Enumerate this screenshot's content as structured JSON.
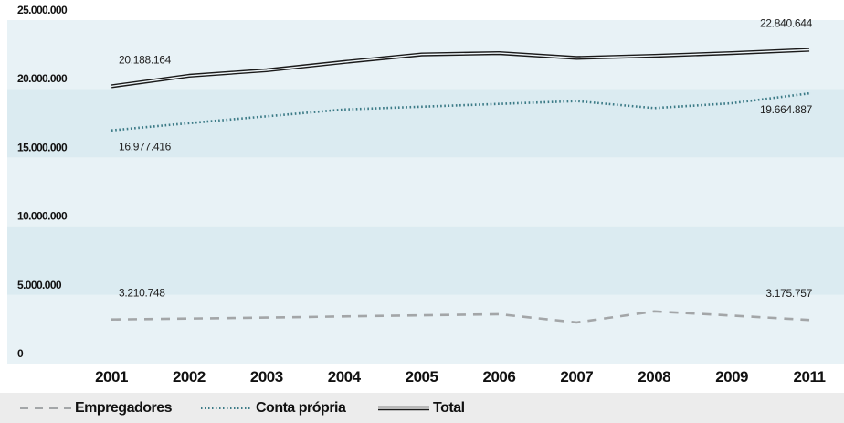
{
  "chart_data": {
    "type": "line",
    "categories": [
      "2001",
      "2002",
      "2003",
      "2004",
      "2005",
      "2006",
      "2007",
      "2008",
      "2009",
      "2011"
    ],
    "ylim": [
      0,
      25000000
    ],
    "yticks": [
      {
        "value": 0,
        "label": "0"
      },
      {
        "value": 5000000,
        "label": "5.000.000"
      },
      {
        "value": 10000000,
        "label": "10.000.000"
      },
      {
        "value": 15000000,
        "label": "15.000.000"
      },
      {
        "value": 20000000,
        "label": "20.000.000"
      },
      {
        "value": 25000000,
        "label": "25.000.000"
      }
    ],
    "series": [
      {
        "name": "Empregadores",
        "style": "dashed",
        "color": "#a3a6a8",
        "values": [
          3210748,
          3280000,
          3350000,
          3440000,
          3520000,
          3600000,
          3000000,
          3800000,
          3500000,
          3175757
        ]
      },
      {
        "name": "Conta própria",
        "style": "dotted",
        "color": "#3b7a86",
        "values": [
          16977416,
          17500000,
          18000000,
          18500000,
          18700000,
          18900000,
          19100000,
          18600000,
          18950000,
          19664887
        ]
      },
      {
        "name": "Total",
        "style": "solid",
        "color": "#1a1a1a",
        "values": [
          20188164,
          20950000,
          21350000,
          21950000,
          22500000,
          22600000,
          22250000,
          22400000,
          22600000,
          22840644
        ]
      }
    ],
    "annotations": [
      {
        "series": "Total",
        "index": 0,
        "label": "20.188.164",
        "pos": "above"
      },
      {
        "series": "Total",
        "index": 9,
        "label": "22.840.644",
        "pos": "above"
      },
      {
        "series": "Conta própria",
        "index": 0,
        "label": "16.977.416",
        "pos": "below"
      },
      {
        "series": "Conta própria",
        "index": 9,
        "label": "19.664.887",
        "pos": "below"
      },
      {
        "series": "Empregadores",
        "index": 0,
        "label": "3.210.748",
        "pos": "above"
      },
      {
        "series": "Empregadores",
        "index": 9,
        "label": "3.175.757",
        "pos": "above"
      }
    ],
    "band_colors": [
      "#e8f2f6",
      "#dbebf1"
    ],
    "legend_position": "bottom"
  },
  "legend": [
    {
      "label": "Empregadores"
    },
    {
      "label": "Conta própria"
    },
    {
      "label": "Total"
    }
  ]
}
